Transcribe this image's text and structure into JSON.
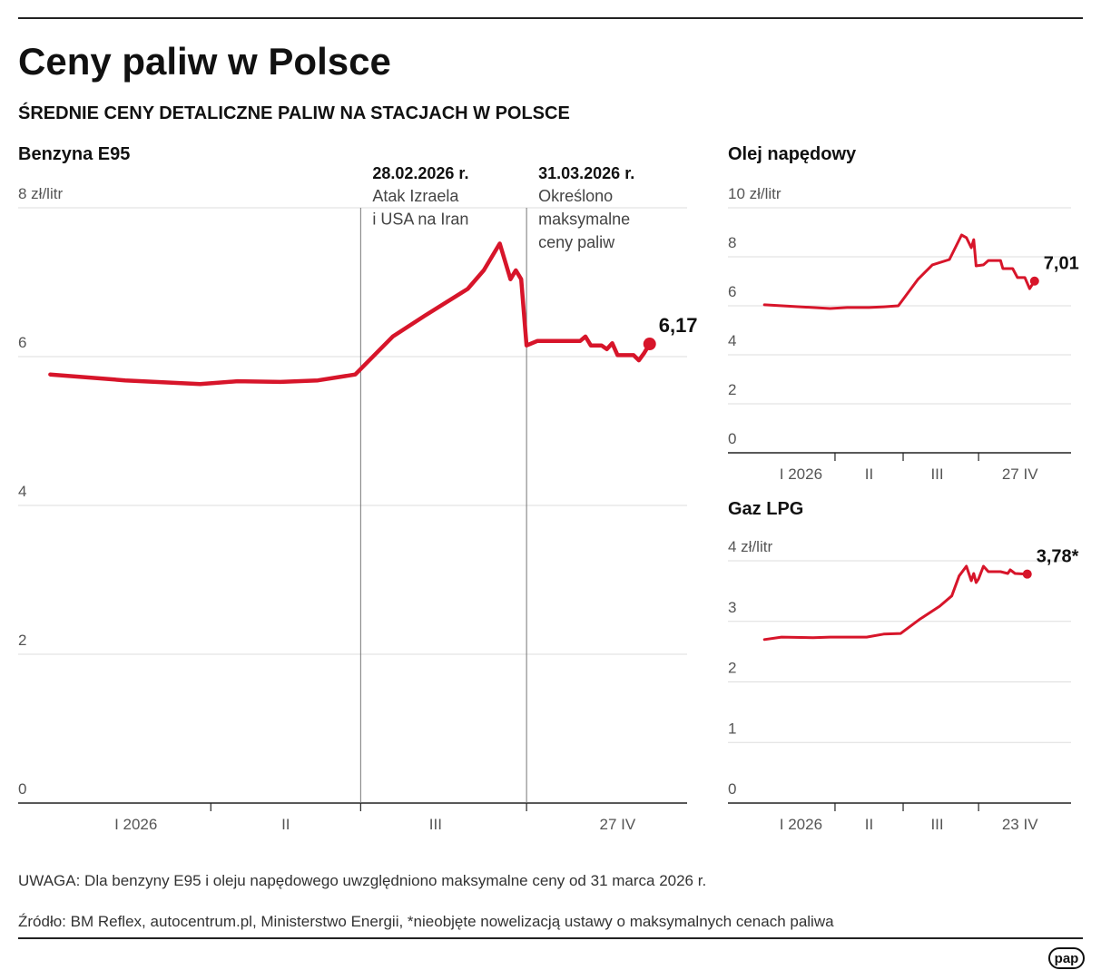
{
  "header": {
    "title": "Ceny paliw w Polsce",
    "subtitle": "ŚREDNIE CENY DETALICZNE PALIW NA STACJACH W POLSCE"
  },
  "chart_data": [
    {
      "type": "line",
      "title": "Benzyna E95",
      "color": "#d7152a",
      "x": [
        1,
        15,
        29,
        36,
        44,
        51,
        58,
        65,
        71,
        79,
        82,
        85,
        87,
        88,
        89,
        90,
        92,
        100,
        101,
        102,
        104,
        105,
        106,
        107,
        110,
        111,
        112,
        113
      ],
      "values": [
        5.76,
        5.68,
        5.63,
        5.67,
        5.66,
        5.68,
        5.76,
        6.27,
        6.55,
        6.91,
        7.16,
        7.52,
        7.04,
        7.16,
        7.04,
        6.15,
        6.21,
        6.21,
        6.27,
        6.15,
        6.15,
        6.1,
        6.18,
        6.02,
        6.02,
        5.95,
        6.05,
        6.17
      ],
      "value_labels": [
        null,
        null,
        null,
        null,
        null,
        null,
        null,
        null,
        null,
        null,
        null,
        null,
        null,
        null,
        null,
        null,
        null,
        null,
        null,
        null,
        null,
        null,
        null,
        null,
        null,
        null,
        null,
        "6,17"
      ],
      "xlim": [
        -5,
        120
      ],
      "xticks": [
        {
          "value": 17,
          "label": "I 2026"
        },
        {
          "value": 45,
          "label": "II"
        },
        {
          "value": 73,
          "label": "III"
        },
        {
          "value": 107,
          "label": "27 IV"
        }
      ],
      "ylim": [
        0,
        8
      ],
      "yticks": [
        0,
        2,
        4,
        6,
        {
          "value": 8,
          "label": "8 zł/litr"
        }
      ],
      "grid": true,
      "annotations": [
        {
          "x": 59,
          "date": "28.02.2026 r.",
          "text": [
            "Atak Izraela",
            "i USA na Iran"
          ]
        },
        {
          "x": 90,
          "date": "31.03.2026 r.",
          "text": [
            "Określono",
            "maksymalne",
            "ceny paliw"
          ]
        }
      ]
    },
    {
      "type": "line",
      "title": "Olej napędowy",
      "color": "#d7152a",
      "x": [
        2,
        29,
        36,
        45,
        51,
        57,
        65,
        71,
        78,
        83,
        85,
        87,
        88,
        89,
        92,
        94,
        99,
        100,
        104,
        106,
        109,
        111,
        113
      ],
      "values": [
        6.04,
        5.89,
        5.93,
        5.93,
        5.96,
        6.0,
        7.07,
        7.67,
        7.89,
        8.89,
        8.78,
        8.37,
        8.7,
        7.63,
        7.67,
        7.85,
        7.85,
        7.52,
        7.52,
        7.15,
        7.15,
        6.7,
        7.01
      ],
      "value_labels": [
        null,
        null,
        null,
        null,
        null,
        null,
        null,
        null,
        null,
        null,
        null,
        null,
        null,
        null,
        null,
        null,
        null,
        null,
        null,
        null,
        null,
        null,
        "7,01"
      ],
      "xlim": [
        -13,
        128
      ],
      "xticks": [
        {
          "value": 17,
          "label": "I 2026"
        },
        {
          "value": 45,
          "label": "II"
        },
        {
          "value": 73,
          "label": "III"
        },
        {
          "value": 107,
          "label": "27 IV"
        }
      ],
      "ylim": [
        0,
        10
      ],
      "yticks": [
        0,
        2,
        4,
        6,
        8,
        {
          "value": 10,
          "label": "10 zł/litr"
        }
      ],
      "grid": true
    },
    {
      "type": "line",
      "title": "Gaz LPG",
      "color": "#d7152a",
      "x": [
        2,
        9,
        22,
        29,
        44,
        51,
        58,
        66,
        74,
        79,
        82,
        85,
        87,
        88,
        89,
        90,
        92,
        94,
        99,
        102,
        103,
        105,
        110
      ],
      "values": [
        2.7,
        2.74,
        2.73,
        2.74,
        2.74,
        2.79,
        2.8,
        3.04,
        3.25,
        3.42,
        3.75,
        3.91,
        3.67,
        3.79,
        3.64,
        3.7,
        3.91,
        3.82,
        3.82,
        3.79,
        3.85,
        3.79,
        3.78
      ],
      "value_labels": [
        null,
        null,
        null,
        null,
        null,
        null,
        null,
        null,
        null,
        null,
        null,
        null,
        null,
        null,
        null,
        null,
        null,
        null,
        null,
        null,
        null,
        null,
        "3,78*"
      ],
      "xlim": [
        -13,
        128
      ],
      "xticks": [
        {
          "value": 17,
          "label": "I 2026"
        },
        {
          "value": 45,
          "label": "II"
        },
        {
          "value": 73,
          "label": "III"
        },
        {
          "value": 107,
          "label": "23 IV"
        }
      ],
      "ylim": [
        0,
        4
      ],
      "yticks": [
        0,
        1,
        2,
        3,
        {
          "value": 4,
          "label": "4 zł/litr"
        }
      ],
      "grid": true
    }
  ],
  "notes": {
    "note": "UWAGA: Dla benzyny E95 i oleju napędowego uwzględniono maksymalne ceny od 31 marca 2026 r.",
    "source": "Źródło: BM Reflex, autocentrum.pl, Ministerstwo Energii, *nieobjęte nowelizacją ustawy o maksymalnych cenach paliwa"
  },
  "logo": "pap"
}
